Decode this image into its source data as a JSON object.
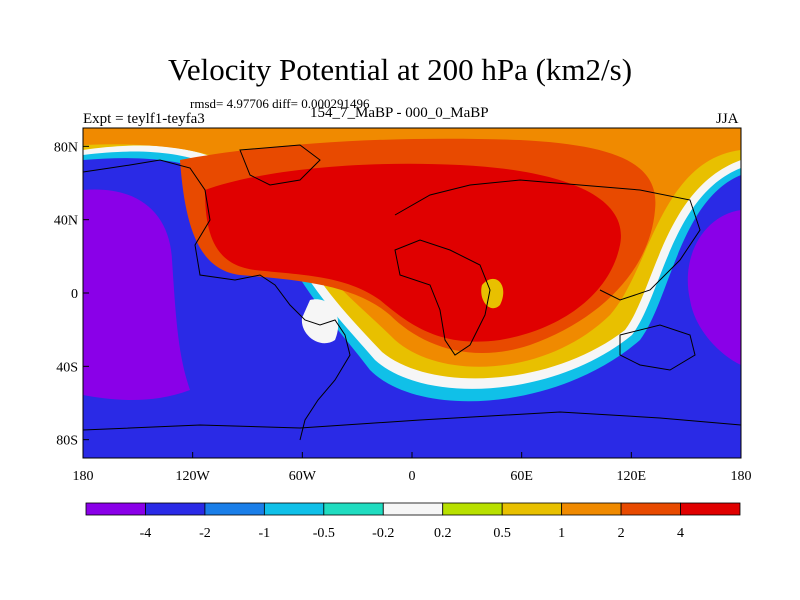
{
  "chart_data": {
    "type": "heatmap",
    "title": "Velocity Potential at 200 hPa (km2/s)",
    "stats": "rmsd= 4.97706 diff= 0.000291496",
    "left_label": "Expt = teylf1-teyfa3",
    "center_label": "154_7_MaBP - 000_0_MaBP",
    "right_label": "JJA",
    "x_ticks": [
      "180",
      "120W",
      "60W",
      "0",
      "60E",
      "120E",
      "180"
    ],
    "x_tick_values": [
      -180,
      -120,
      -60,
      0,
      60,
      120,
      180
    ],
    "y_ticks": [
      "80N",
      "40N",
      "0",
      "40S",
      "80S"
    ],
    "y_tick_values": [
      80,
      40,
      0,
      -40,
      -80
    ],
    "xlim": [
      -180,
      180
    ],
    "ylim": [
      -90,
      90
    ],
    "colorbar": {
      "labels": [
        "-4",
        "-2",
        "-1",
        "-0.5",
        "-0.2",
        "0.2",
        "0.5",
        "1",
        "2",
        "4"
      ],
      "levels": [
        -4,
        -2,
        -1,
        -0.5,
        -0.2,
        0.2,
        0.5,
        1,
        2,
        4
      ],
      "colors": [
        "#8a00e8",
        "#2a2ae6",
        "#1a7ee8",
        "#10c0e8",
        "#20dcc0",
        "#f6f6f6",
        "#b8e000",
        "#e8c000",
        "#f08a00",
        "#e84a00",
        "#e00000"
      ]
    }
  }
}
